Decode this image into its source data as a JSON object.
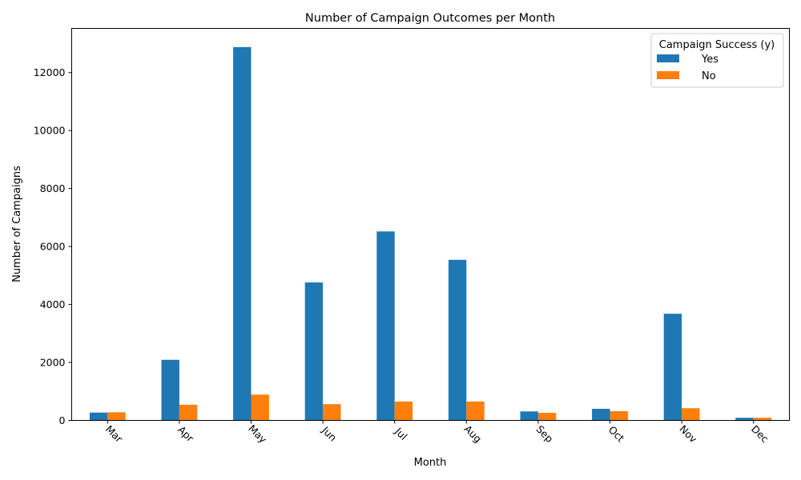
{
  "chart_data": {
    "type": "bar",
    "title": "Number of Campaign Outcomes per Month",
    "xlabel": "Month",
    "ylabel": "Number of Campaigns",
    "categories": [
      "Mar",
      "Apr",
      "May",
      "Jun",
      "Jul",
      "Aug",
      "Sep",
      "Oct",
      "Nov",
      "Dec"
    ],
    "series": [
      {
        "name": "Yes",
        "color": "#1f77b4",
        "values": [
          270,
          2090,
          12880,
          4760,
          6520,
          5540,
          310,
          400,
          3680,
          90
        ]
      },
      {
        "name": "No",
        "color": "#ff7f0e",
        "values": [
          280,
          540,
          890,
          560,
          650,
          650,
          260,
          320,
          420,
          90
        ]
      }
    ],
    "ylim": [
      0,
      13525
    ],
    "yticks": [
      0,
      2000,
      4000,
      6000,
      8000,
      10000,
      12000
    ],
    "legend": {
      "title": "Campaign Success (y)",
      "position": "top-right"
    },
    "grid": false
  }
}
